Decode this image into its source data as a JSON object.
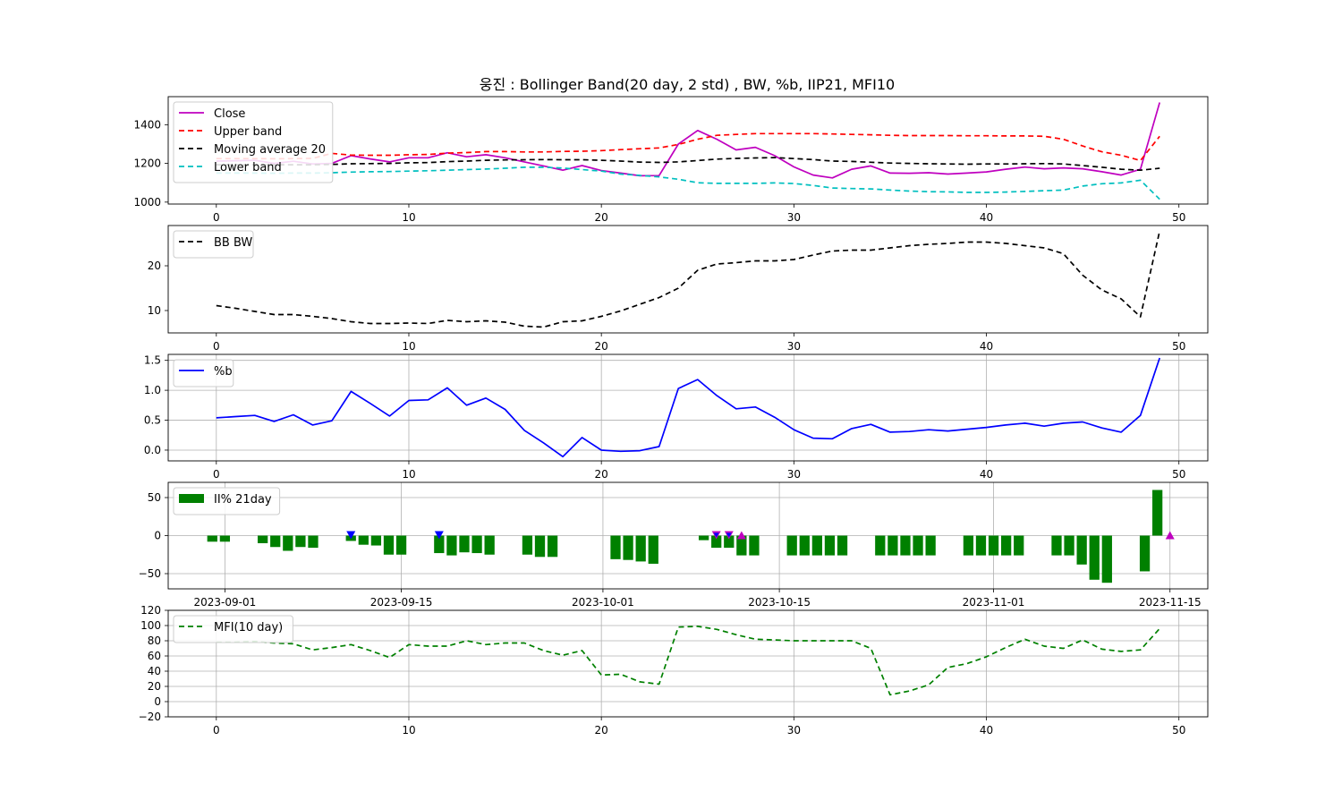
{
  "title": "웅진 : Bollinger Band(20 day, 2 std) , BW, %b, IIP21, MFI10",
  "chart_data": [
    {
      "type": "line",
      "x_ticks": [
        0,
        10,
        20,
        30,
        40,
        50
      ],
      "y_ticks": [
        1000,
        1200,
        1400
      ],
      "xlim": [
        -2.5,
        51.5
      ],
      "ylim": [
        990,
        1545
      ],
      "grid": false,
      "legend": "top-left",
      "x": [
        0,
        1,
        2,
        3,
        4,
        5,
        6,
        7,
        8,
        9,
        10,
        11,
        12,
        13,
        14,
        15,
        16,
        17,
        18,
        19,
        20,
        21,
        22,
        23,
        24,
        25,
        26,
        27,
        28,
        29,
        30,
        31,
        32,
        33,
        34,
        35,
        36,
        37,
        38,
        39,
        40,
        41,
        42,
        43,
        44,
        45,
        46,
        47,
        48,
        49
      ],
      "series": [
        {
          "name": "Close",
          "color": "#bf00bf",
          "dash": "solid",
          "values": [
            1212,
            1214,
            1216,
            1200,
            1211,
            1197,
            1200,
            1240,
            1223,
            1208,
            1229,
            1229,
            1255,
            1234,
            1245,
            1229,
            1208,
            1187,
            1165,
            1189,
            1163,
            1150,
            1136,
            1137,
            1300,
            1370,
            1325,
            1270,
            1283,
            1240,
            1182,
            1140,
            1125,
            1170,
            1187,
            1150,
            1149,
            1152,
            1145,
            1150,
            1156,
            1170,
            1181,
            1172,
            1177,
            1172,
            1157,
            1140,
            1170,
            1515
          ]
        },
        {
          "name": "Upper band",
          "color": "#ff0000",
          "dash": "6,4",
          "values": [
            1225,
            1225,
            1225,
            1224,
            1225,
            1226,
            1252,
            1243,
            1242,
            1242,
            1245,
            1246,
            1253,
            1256,
            1261,
            1261,
            1259,
            1259,
            1262,
            1263,
            1266,
            1271,
            1276,
            1280,
            1298,
            1325,
            1345,
            1350,
            1354,
            1354,
            1354,
            1354,
            1352,
            1350,
            1348,
            1345,
            1344,
            1344,
            1344,
            1343,
            1343,
            1342,
            1342,
            1340,
            1325,
            1290,
            1260,
            1242,
            1215,
            1340
          ]
        },
        {
          "name": "Moving average 20",
          "color": "#000000",
          "dash": "6,4",
          "values": [
            1193,
            1193,
            1193,
            1193,
            1193,
            1193,
            1195,
            1198,
            1199,
            1200,
            1203,
            1204,
            1209,
            1212,
            1216,
            1218,
            1219,
            1220,
            1219,
            1219,
            1216,
            1212,
            1207,
            1205,
            1208,
            1215,
            1222,
            1226,
            1228,
            1230,
            1225,
            1220,
            1212,
            1210,
            1206,
            1202,
            1200,
            1198,
            1197,
            1196,
            1197,
            1197,
            1198,
            1199,
            1197,
            1189,
            1180,
            1170,
            1165,
            1175
          ]
        },
        {
          "name": "Lower band",
          "color": "#00bfbf",
          "dash": "6,4",
          "values": [
            1150,
            1150,
            1150,
            1149,
            1150,
            1150,
            1152,
            1155,
            1157,
            1158,
            1160,
            1162,
            1165,
            1168,
            1171,
            1175,
            1180,
            1180,
            1176,
            1168,
            1160,
            1145,
            1138,
            1130,
            1118,
            1100,
            1097,
            1097,
            1097,
            1099,
            1096,
            1086,
            1073,
            1070,
            1068,
            1062,
            1057,
            1054,
            1053,
            1050,
            1050,
            1052,
            1055,
            1059,
            1062,
            1083,
            1095,
            1099,
            1113,
            1015
          ]
        }
      ]
    },
    {
      "type": "line",
      "x_ticks": [
        0,
        10,
        20,
        30,
        40,
        50
      ],
      "y_ticks": [
        10,
        20
      ],
      "xlim": [
        -2.5,
        51.5
      ],
      "ylim": [
        5,
        29
      ],
      "grid": false,
      "legend": "top-left",
      "x": [
        0,
        1,
        2,
        3,
        4,
        5,
        6,
        7,
        8,
        9,
        10,
        11,
        12,
        13,
        14,
        15,
        16,
        17,
        18,
        19,
        20,
        21,
        22,
        23,
        24,
        25,
        26,
        27,
        28,
        29,
        30,
        31,
        32,
        33,
        34,
        35,
        36,
        37,
        38,
        39,
        40,
        41,
        42,
        43,
        44,
        45,
        46,
        47,
        48,
        49
      ],
      "series": [
        {
          "name": "BB BW",
          "color": "#000000",
          "dash": "6,4",
          "values": [
            11.1,
            10.5,
            9.8,
            9.1,
            9.1,
            8.7,
            8.2,
            7.5,
            7.1,
            7.1,
            7.2,
            7.1,
            7.8,
            7.5,
            7.7,
            7.4,
            6.5,
            6.3,
            7.5,
            7.7,
            8.7,
            9.9,
            11.4,
            12.9,
            15.0,
            19.0,
            20.4,
            20.7,
            21.1,
            21.1,
            21.4,
            22.4,
            23.3,
            23.5,
            23.5,
            24.0,
            24.5,
            24.8,
            25.0,
            25.3,
            25.3,
            25.0,
            24.5,
            24.0,
            22.7,
            17.9,
            14.6,
            12.6,
            8.6,
            27.8
          ]
        }
      ]
    },
    {
      "type": "line",
      "x_ticks": [
        0,
        10,
        20,
        30,
        40,
        50
      ],
      "y_ticks": [
        0.0,
        0.5,
        1.0,
        1.5
      ],
      "y_tick_labels": [
        "0.0",
        "0.5",
        "1.0",
        "1.5"
      ],
      "xlim": [
        -2.5,
        51.5
      ],
      "ylim": [
        -0.18,
        1.6
      ],
      "grid": true,
      "legend": "top-left",
      "x": [
        0,
        1,
        2,
        3,
        4,
        5,
        6,
        7,
        8,
        9,
        10,
        11,
        12,
        13,
        14,
        15,
        16,
        17,
        18,
        19,
        20,
        21,
        22,
        23,
        24,
        25,
        26,
        27,
        28,
        29,
        30,
        31,
        32,
        33,
        34,
        35,
        36,
        37,
        38,
        39,
        40,
        41,
        42,
        43,
        44,
        45,
        46,
        47,
        48,
        49
      ],
      "series": [
        {
          "name": "%b",
          "color": "#0000ff",
          "dash": "solid",
          "values": [
            0.54,
            0.56,
            0.58,
            0.48,
            0.59,
            0.42,
            0.49,
            0.98,
            0.78,
            0.57,
            0.83,
            0.84,
            1.04,
            0.75,
            0.87,
            0.68,
            0.33,
            0.12,
            -0.11,
            0.21,
            0.0,
            -0.02,
            -0.01,
            0.06,
            1.03,
            1.18,
            0.91,
            0.69,
            0.72,
            0.55,
            0.34,
            0.2,
            0.19,
            0.36,
            0.43,
            0.3,
            0.31,
            0.34,
            0.32,
            0.35,
            0.38,
            0.42,
            0.45,
            0.4,
            0.45,
            0.47,
            0.37,
            0.3,
            0.58,
            1.54
          ]
        }
      ]
    },
    {
      "type": "bar",
      "x_tick_labels": [
        "2023-09-01",
        "2023-09-15",
        "2023-10-01",
        "2023-10-15",
        "2023-11-01",
        "2023-11-15"
      ],
      "x_tick_days": [
        0,
        14,
        30,
        44,
        61,
        75
      ],
      "y_ticks": [
        -50,
        0,
        50
      ],
      "y_tick_labels": [
        "−50",
        "0",
        "50"
      ],
      "xlim": [
        -4.5,
        78
      ],
      "ylim": [
        -70,
        70
      ],
      "grid": true,
      "legend": "top-left",
      "x_days": [
        -1,
        0,
        3,
        4,
        5,
        6,
        7,
        10,
        11,
        12,
        13,
        14,
        17,
        18,
        19,
        20,
        21,
        24,
        25,
        26,
        31,
        32,
        33,
        34,
        38,
        39,
        40,
        41,
        42,
        45,
        46,
        47,
        48,
        49,
        52,
        53,
        54,
        55,
        56,
        59,
        60,
        61,
        62,
        63,
        66,
        67,
        68,
        69,
        70,
        73,
        74,
        75
      ],
      "series": [
        {
          "name": "II% 21day",
          "color": "#008000",
          "values": [
            -8,
            -8,
            -10,
            -15,
            -20,
            -15,
            -16,
            -7,
            -12,
            -13,
            -25,
            -25,
            -23,
            -26,
            -22,
            -23,
            -25,
            -25,
            -28,
            -28,
            -31,
            -32,
            -34,
            -37,
            -6,
            -16,
            -16,
            -26,
            -26,
            -26,
            -26,
            -26,
            -26,
            -26,
            -26,
            -26,
            -26,
            -26,
            -26,
            -26,
            -26,
            -26,
            -26,
            -26,
            -26,
            -26,
            -38,
            -58,
            -62,
            -47,
            60,
            0
          ]
        }
      ],
      "markers": [
        {
          "day": 10,
          "value": 0,
          "symbol": "down",
          "color": "#0000ff"
        },
        {
          "day": 17,
          "value": 0,
          "symbol": "down",
          "color": "#0000ff"
        },
        {
          "day": 39,
          "value": 0,
          "symbol": "down",
          "color": "#bf00bf"
        },
        {
          "day": 39,
          "value": 0,
          "symbol": "down-inner",
          "color": "#0000ff"
        },
        {
          "day": 40,
          "value": 0,
          "symbol": "down",
          "color": "#bf00bf"
        },
        {
          "day": 40,
          "value": 0,
          "symbol": "down-inner",
          "color": "#0000ff"
        },
        {
          "day": 41,
          "value": 0,
          "symbol": "up",
          "color": "#bf00bf"
        },
        {
          "day": 75,
          "value": 0,
          "symbol": "up",
          "color": "#bf00bf"
        }
      ]
    },
    {
      "type": "line",
      "x_ticks": [
        0,
        10,
        20,
        30,
        40,
        50
      ],
      "y_ticks": [
        -20,
        0,
        20,
        40,
        60,
        80,
        100,
        120
      ],
      "y_tick_labels": [
        "−20",
        "0",
        "20",
        "40",
        "60",
        "80",
        "100",
        "120"
      ],
      "xlim": [
        -2.5,
        51.5
      ],
      "ylim": [
        -20,
        120
      ],
      "grid": true,
      "legend": "top-left",
      "x": [
        0,
        1,
        2,
        3,
        4,
        5,
        6,
        7,
        8,
        9,
        10,
        11,
        12,
        13,
        14,
        15,
        16,
        17,
        18,
        19,
        20,
        21,
        22,
        23,
        24,
        25,
        26,
        27,
        28,
        29,
        30,
        31,
        32,
        33,
        34,
        35,
        36,
        37,
        38,
        39,
        40,
        41,
        42,
        43,
        44,
        45,
        46,
        47,
        48,
        49
      ],
      "series": [
        {
          "name": "MFI(10 day)",
          "color": "#008000",
          "dash": "6,4",
          "values": [
            78,
            78,
            79,
            77,
            76,
            68,
            71,
            75,
            67,
            58,
            75,
            73,
            73,
            80,
            75,
            77,
            77,
            67,
            61,
            67,
            35,
            36,
            26,
            23,
            98,
            99,
            95,
            88,
            82,
            81,
            80,
            80,
            80,
            80,
            70,
            9,
            14,
            22,
            45,
            50,
            59,
            71,
            82,
            73,
            70,
            81,
            69,
            66,
            68,
            96
          ]
        }
      ]
    }
  ]
}
